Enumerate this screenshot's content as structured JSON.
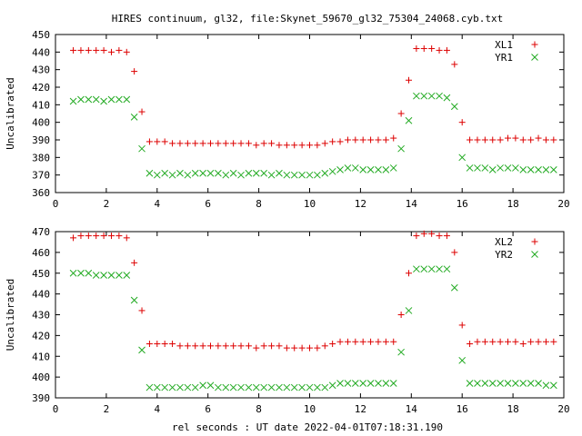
{
  "chart_data": {
    "title": "HIRES continuum, gl32, file:Skynet_59670_gl32_75304_24068.cyb.txt",
    "xlabel": "rel seconds : UT date 2022-04-01T07:18:31.190",
    "colors": {
      "XL": "#dd0000",
      "YR": "#22aa22"
    },
    "markers": {
      "XL": "plus",
      "YR": "cross"
    },
    "panels": [
      {
        "type": "scatter",
        "ylabel": "Uncalibrated",
        "xlim": [
          0,
          20
        ],
        "ylim": [
          360,
          450
        ],
        "xticks": [
          0,
          2,
          4,
          6,
          8,
          10,
          12,
          14,
          16,
          18,
          20
        ],
        "yticks": [
          360,
          370,
          380,
          390,
          400,
          410,
          420,
          430,
          440,
          450
        ],
        "legend_position": "top-right",
        "series": [
          {
            "name": "XL1",
            "color_key": "XL",
            "x": [
              0.7,
              1.0,
              1.3,
              1.6,
              1.9,
              2.2,
              2.5,
              2.8,
              3.1,
              3.4,
              3.7,
              4.0,
              4.3,
              4.6,
              4.9,
              5.2,
              5.5,
              5.8,
              6.1,
              6.4,
              6.7,
              7.0,
              7.3,
              7.6,
              7.9,
              8.2,
              8.5,
              8.8,
              9.1,
              9.4,
              9.7,
              10.0,
              10.3,
              10.6,
              10.9,
              11.2,
              11.5,
              11.8,
              12.1,
              12.4,
              12.7,
              13.0,
              13.3,
              13.6,
              13.9,
              14.2,
              14.5,
              14.8,
              15.1,
              15.4,
              15.7,
              16.0,
              16.3,
              16.6,
              16.9,
              17.2,
              17.5,
              17.8,
              18.1,
              18.4,
              18.7,
              19.0,
              19.3,
              19.6
            ],
            "y": [
              441,
              441,
              441,
              441,
              441,
              440,
              441,
              440,
              429,
              406,
              389,
              389,
              389,
              388,
              388,
              388,
              388,
              388,
              388,
              388,
              388,
              388,
              388,
              388,
              387,
              388,
              388,
              387,
              387,
              387,
              387,
              387,
              387,
              388,
              389,
              389,
              390,
              390,
              390,
              390,
              390,
              390,
              391,
              405,
              424,
              442,
              442,
              442,
              441,
              441,
              433,
              400,
              390,
              390,
              390,
              390,
              390,
              391,
              391,
              390,
              390,
              391,
              390,
              390
            ]
          },
          {
            "name": "YR1",
            "color_key": "YR",
            "x": [
              0.7,
              1.0,
              1.3,
              1.6,
              1.9,
              2.2,
              2.5,
              2.8,
              3.1,
              3.4,
              3.7,
              4.0,
              4.3,
              4.6,
              4.9,
              5.2,
              5.5,
              5.8,
              6.1,
              6.4,
              6.7,
              7.0,
              7.3,
              7.6,
              7.9,
              8.2,
              8.5,
              8.8,
              9.1,
              9.4,
              9.7,
              10.0,
              10.3,
              10.6,
              10.9,
              11.2,
              11.5,
              11.8,
              12.1,
              12.4,
              12.7,
              13.0,
              13.3,
              13.6,
              13.9,
              14.2,
              14.5,
              14.8,
              15.1,
              15.4,
              15.7,
              16.0,
              16.3,
              16.6,
              16.9,
              17.2,
              17.5,
              17.8,
              18.1,
              18.4,
              18.7,
              19.0,
              19.3,
              19.6
            ],
            "y": [
              412,
              413,
              413,
              413,
              412,
              413,
              413,
              413,
              403,
              385,
              371,
              370,
              371,
              370,
              371,
              370,
              371,
              371,
              371,
              371,
              370,
              371,
              370,
              371,
              371,
              371,
              370,
              371,
              370,
              370,
              370,
              370,
              370,
              371,
              372,
              373,
              374,
              374,
              373,
              373,
              373,
              373,
              374,
              385,
              401,
              415,
              415,
              415,
              415,
              414,
              409,
              380,
              374,
              374,
              374,
              373,
              374,
              374,
              374,
              373,
              373,
              373,
              373,
              373
            ]
          }
        ]
      },
      {
        "type": "scatter",
        "ylabel": "Uncalibrated",
        "xlim": [
          0,
          20
        ],
        "ylim": [
          390,
          470
        ],
        "xticks": [
          0,
          2,
          4,
          6,
          8,
          10,
          12,
          14,
          16,
          18,
          20
        ],
        "yticks": [
          390,
          400,
          410,
          420,
          430,
          440,
          450,
          460,
          470
        ],
        "legend_position": "top-right",
        "series": [
          {
            "name": "XL2",
            "color_key": "XL",
            "x": [
              0.7,
              1.0,
              1.3,
              1.6,
              1.9,
              2.2,
              2.5,
              2.8,
              3.1,
              3.4,
              3.7,
              4.0,
              4.3,
              4.6,
              4.9,
              5.2,
              5.5,
              5.8,
              6.1,
              6.4,
              6.7,
              7.0,
              7.3,
              7.6,
              7.9,
              8.2,
              8.5,
              8.8,
              9.1,
              9.4,
              9.7,
              10.0,
              10.3,
              10.6,
              10.9,
              11.2,
              11.5,
              11.8,
              12.1,
              12.4,
              12.7,
              13.0,
              13.3,
              13.6,
              13.9,
              14.2,
              14.5,
              14.8,
              15.1,
              15.4,
              15.7,
              16.0,
              16.3,
              16.6,
              16.9,
              17.2,
              17.5,
              17.8,
              18.1,
              18.4,
              18.7,
              19.0,
              19.3,
              19.6
            ],
            "y": [
              467,
              468,
              468,
              468,
              468,
              468,
              468,
              467,
              455,
              432,
              416,
              416,
              416,
              416,
              415,
              415,
              415,
              415,
              415,
              415,
              415,
              415,
              415,
              415,
              414,
              415,
              415,
              415,
              414,
              414,
              414,
              414,
              414,
              415,
              416,
              417,
              417,
              417,
              417,
              417,
              417,
              417,
              417,
              430,
              450,
              468,
              469,
              469,
              468,
              468,
              460,
              425,
              416,
              417,
              417,
              417,
              417,
              417,
              417,
              416,
              417,
              417,
              417,
              417
            ]
          },
          {
            "name": "YR2",
            "color_key": "YR",
            "x": [
              0.7,
              1.0,
              1.3,
              1.6,
              1.9,
              2.2,
              2.5,
              2.8,
              3.1,
              3.4,
              3.7,
              4.0,
              4.3,
              4.6,
              4.9,
              5.2,
              5.5,
              5.8,
              6.1,
              6.4,
              6.7,
              7.0,
              7.3,
              7.6,
              7.9,
              8.2,
              8.5,
              8.8,
              9.1,
              9.4,
              9.7,
              10.0,
              10.3,
              10.6,
              10.9,
              11.2,
              11.5,
              11.8,
              12.1,
              12.4,
              12.7,
              13.0,
              13.3,
              13.6,
              13.9,
              14.2,
              14.5,
              14.8,
              15.1,
              15.4,
              15.7,
              16.0,
              16.3,
              16.6,
              16.9,
              17.2,
              17.5,
              17.8,
              18.1,
              18.4,
              18.7,
              19.0,
              19.3,
              19.6
            ],
            "y": [
              450,
              450,
              450,
              449,
              449,
              449,
              449,
              449,
              437,
              413,
              395,
              395,
              395,
              395,
              395,
              395,
              395,
              396,
              396,
              395,
              395,
              395,
              395,
              395,
              395,
              395,
              395,
              395,
              395,
              395,
              395,
              395,
              395,
              395,
              396,
              397,
              397,
              397,
              397,
              397,
              397,
              397,
              397,
              412,
              432,
              452,
              452,
              452,
              452,
              452,
              443,
              408,
              397,
              397,
              397,
              397,
              397,
              397,
              397,
              397,
              397,
              397,
              396,
              396
            ]
          }
        ]
      }
    ]
  }
}
